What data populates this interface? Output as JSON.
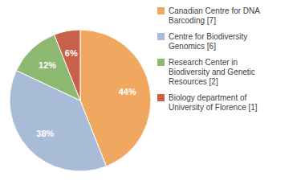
{
  "chart_data": {
    "type": "pie",
    "categories": [
      "Canadian Centre for DNA\nBarcoding [7]",
      "Centre for Biodiversity\nGenomics [6]",
      "Research Center in\nBiodiversity and Genetic\nResources [2]",
      "Biology department of\nUniversity of Florence [1]"
    ],
    "values": [
      44,
      38,
      12,
      6
    ],
    "value_labels": [
      "44%",
      "38%",
      "12%",
      "6%"
    ],
    "colors": [
      "#f0a860",
      "#a8bcd8",
      "#8db870",
      "#c8604a"
    ],
    "data_labels": true,
    "legend": "right"
  }
}
